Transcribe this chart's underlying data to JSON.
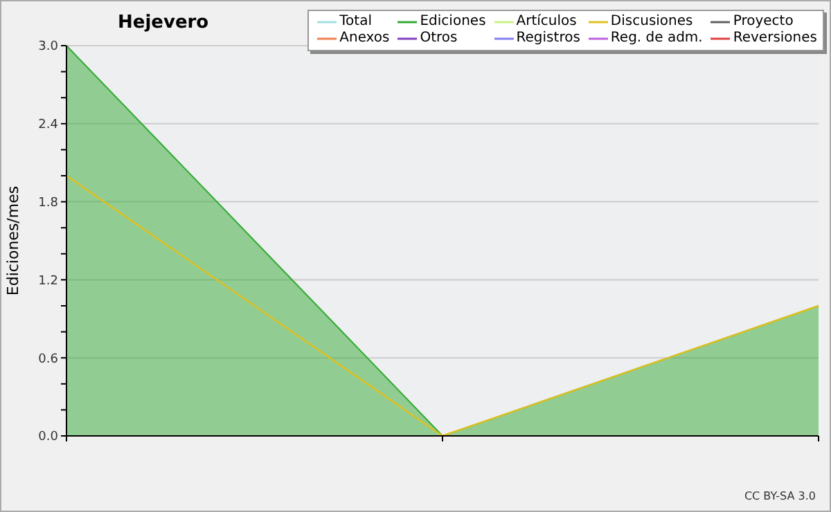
{
  "chart_data": {
    "type": "line",
    "title": "Hejevero",
    "ylabel": "Ediciones/mes",
    "categories": [
      null,
      null,
      null
    ],
    "series": [
      {
        "name": "Total",
        "color": "#a0e0e0",
        "values": [
          null,
          null,
          null
        ]
      },
      {
        "name": "Ediciones",
        "type": "area",
        "color": "#33aa33",
        "values": [
          3,
          0,
          1
        ]
      },
      {
        "name": "Artículos",
        "color": "#c8f080",
        "values": [
          null,
          null,
          null
        ]
      },
      {
        "name": "Discusiones",
        "color": "#e0c020",
        "values": [
          2,
          0,
          1
        ]
      },
      {
        "name": "Proyecto",
        "color": "#606060",
        "values": [
          null,
          null,
          null
        ]
      },
      {
        "name": "Anexos",
        "color": "#f08050",
        "values": [
          null,
          null,
          null
        ]
      },
      {
        "name": "Otros",
        "color": "#8040c0",
        "values": [
          null,
          null,
          null
        ]
      },
      {
        "name": "Registros",
        "color": "#8080f0",
        "values": [
          null,
          null,
          null
        ]
      },
      {
        "name": "Reg. de adm.",
        "color": "#c060e0",
        "values": [
          null,
          null,
          null
        ]
      },
      {
        "name": "Reversiones",
        "color": "#e04040",
        "values": [
          null,
          null,
          null
        ]
      }
    ],
    "ylim": [
      0,
      3
    ],
    "yticks": [
      {
        "value": 0,
        "label": "0.0"
      },
      {
        "value": 0.2,
        "label": null
      },
      {
        "value": 0.4,
        "label": null
      },
      {
        "value": 0.6,
        "label": "0.6"
      },
      {
        "value": 0.8,
        "label": null
      },
      {
        "value": 1,
        "label": null
      },
      {
        "value": 1.2,
        "label": "1.2"
      },
      {
        "value": 1.4,
        "label": null
      },
      {
        "value": 1.6,
        "label": null
      },
      {
        "value": 1.8,
        "label": "1.8"
      },
      {
        "value": 2,
        "label": null
      },
      {
        "value": 2.2,
        "label": null
      },
      {
        "value": 2.4,
        "label": "2.4"
      },
      {
        "value": 2.6,
        "label": null
      },
      {
        "value": 2.8,
        "label": null
      },
      {
        "value": 3,
        "label": "3.0"
      }
    ],
    "grid": "y",
    "legend": "top right",
    "marker": "none",
    "annotations": [
      "CC BY-SA 3.0"
    ]
  }
}
